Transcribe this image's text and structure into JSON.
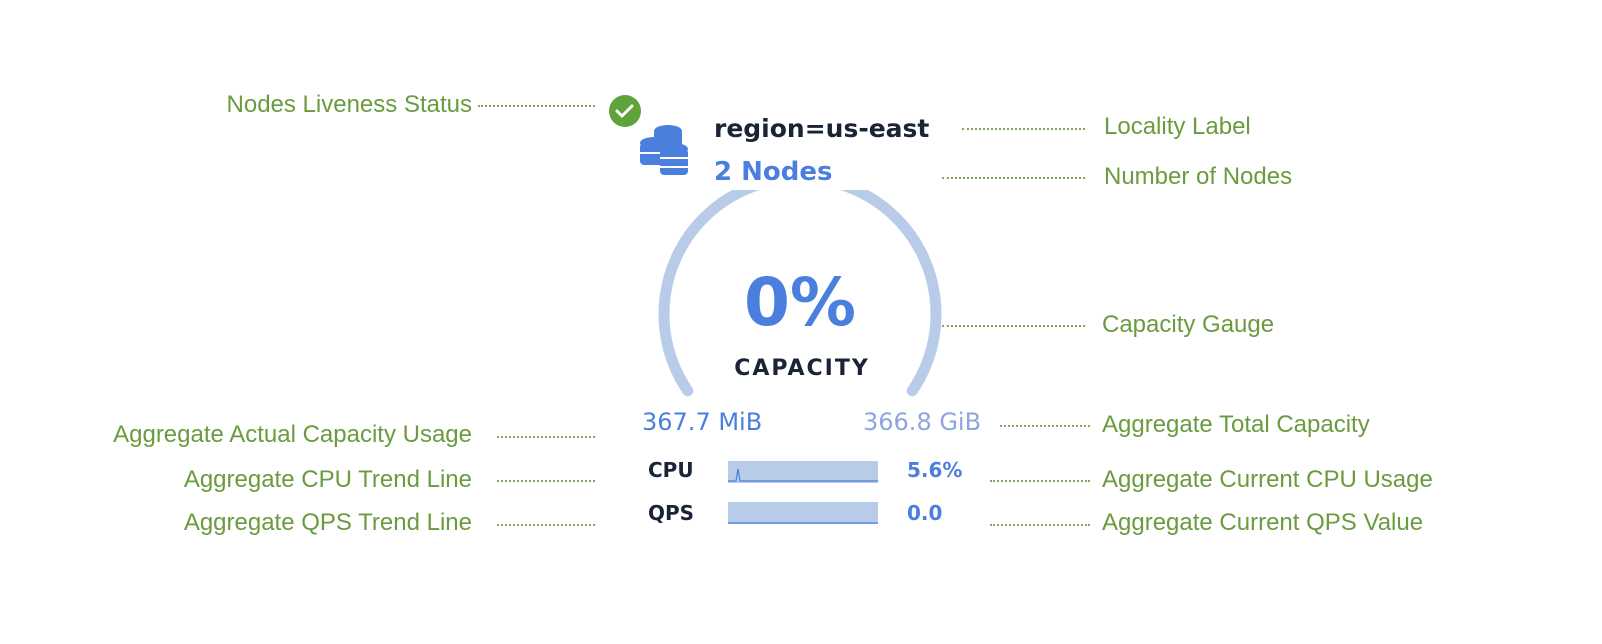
{
  "annotations": {
    "liveness": "Nodes Liveness Status",
    "locality": "Locality Label",
    "node_count": "Number of Nodes",
    "gauge": "Capacity Gauge",
    "actual_usage": "Aggregate Actual Capacity Usage",
    "total_capacity": "Aggregate Total Capacity",
    "cpu_trend": "Aggregate CPU Trend Line",
    "cpu_current": "Aggregate Current CPU Usage",
    "qps_trend": "Aggregate QPS Trend Line",
    "qps_current": "Aggregate Current QPS Value"
  },
  "widget": {
    "status": "live",
    "icon": "database-stack-icon",
    "locality": "region=us-east",
    "nodes": "2 Nodes",
    "capacity_percent": "0%",
    "capacity_label": "CAPACITY",
    "capacity_used": "367.7 MiB",
    "capacity_total": "366.8 GiB",
    "cpu_label": "CPU",
    "cpu_value": "5.6%",
    "qps_label": "QPS",
    "qps_value": "0.0"
  },
  "colors": {
    "annotation": "#6b9b3f",
    "accent": "#4a7fde",
    "gauge_track": "#b8cbe8",
    "status_ok": "#5fa33a"
  }
}
